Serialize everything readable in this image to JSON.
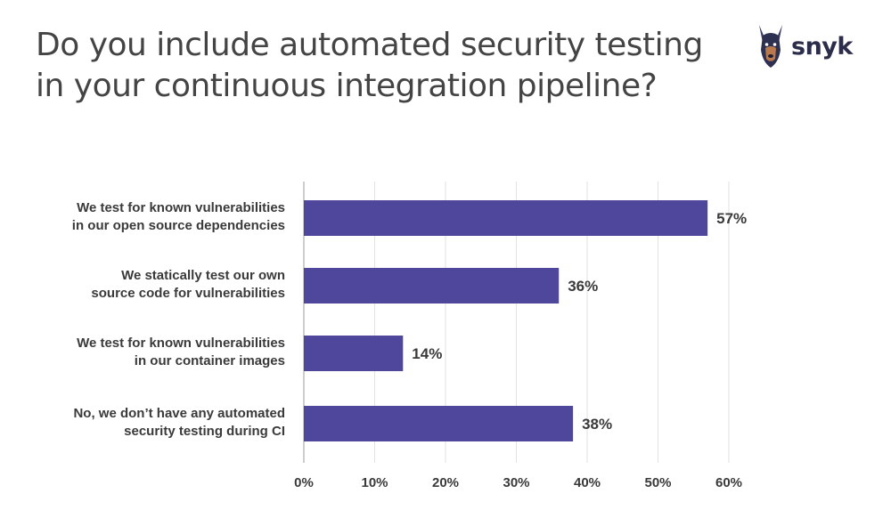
{
  "title_lines": [
    "Do you include automated security testing",
    "in your continuous integration pipeline?"
  ],
  "logo": {
    "text": "snyk",
    "icon": "doberman-dog-icon"
  },
  "colors": {
    "bar": "#4f479c",
    "grid": "#e2e2e2",
    "axis": "#bdbdbd",
    "text": "#3a3a3a"
  },
  "chart_data": {
    "type": "bar",
    "orientation": "horizontal",
    "categories": [
      [
        "We test for known vulnerabilities",
        "in our open source dependencies"
      ],
      [
        "We statically test our own",
        "source code for vulnerabilities"
      ],
      [
        "We test for known vulnerabilities",
        "in our container images"
      ],
      [
        "No, we don’t have any automated",
        "security testing during CI"
      ]
    ],
    "values": [
      57,
      36,
      14,
      38
    ],
    "value_labels": [
      "57%",
      "36%",
      "14%",
      "38%"
    ],
    "x_ticks": [
      "0%",
      "10%",
      "20%",
      "30%",
      "40%",
      "50%",
      "60%"
    ],
    "xlim": [
      0,
      60
    ],
    "grid": true,
    "legend": "none"
  }
}
